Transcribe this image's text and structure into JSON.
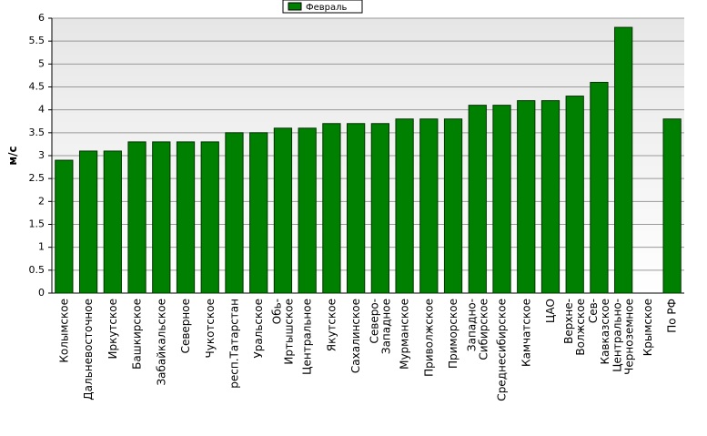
{
  "chart_data": {
    "type": "bar",
    "y_label": "м/с",
    "categories": [
      "Колымское",
      "Дальневосточное",
      "Иркутское",
      "Башкирское",
      "Забайкальское",
      "Северное",
      "Чукотское",
      "респ.Татарстан",
      "Уральское",
      "Обь-\nИртышское",
      "Центральное",
      "Якутское",
      "Сахалинское",
      "Северо-\nЗападное",
      "Мурманское",
      "Приволжское",
      "Приморское",
      "Западно-\nСибирское",
      "Среднесибирское",
      "Камчатское",
      "ЦАО",
      "Верхне-\nВолжское",
      "Сев-\nКавказское",
      "Центрально-\nЧерноземное",
      "Крымское",
      "По РФ"
    ],
    "series": [
      {
        "name": "Февраль",
        "color": "#008000",
        "values": [
          2.9,
          3.1,
          3.1,
          3.3,
          3.3,
          3.3,
          3.3,
          3.5,
          3.5,
          3.6,
          3.6,
          3.7,
          3.7,
          3.7,
          3.8,
          3.8,
          3.8,
          4.1,
          4.1,
          4.2,
          4.2,
          4.3,
          4.6,
          5.8,
          null,
          3.8
        ]
      }
    ],
    "ylim": [
      0,
      6
    ],
    "yticks": [
      0,
      0.5,
      1,
      1.5,
      2,
      2.5,
      3,
      3.5,
      4,
      4.5,
      5,
      5.5,
      6
    ],
    "grid": true
  }
}
